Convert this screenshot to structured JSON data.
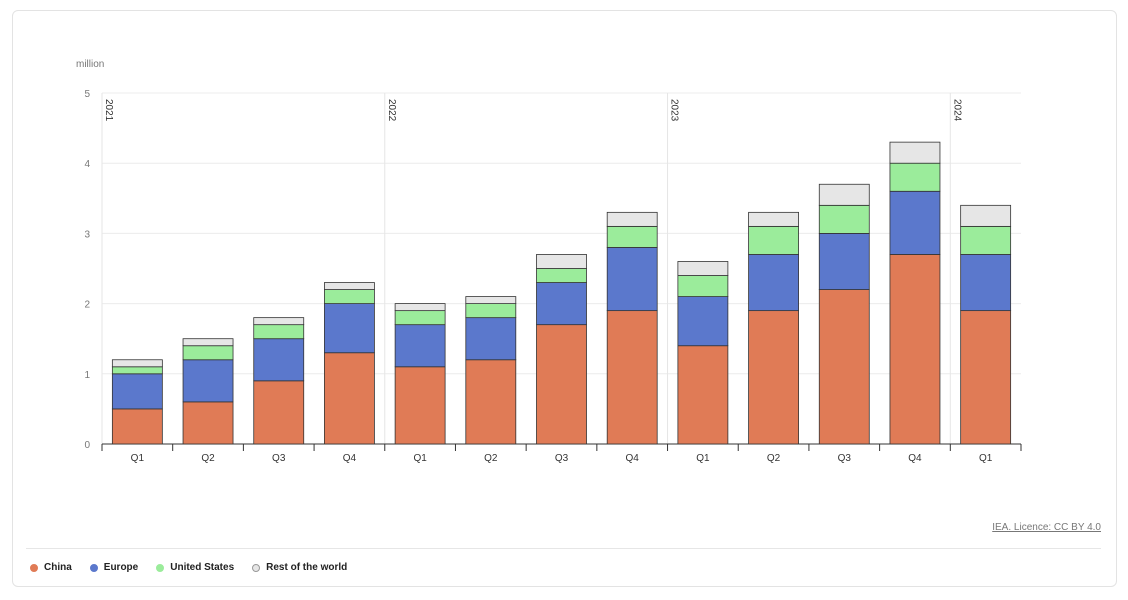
{
  "chart_data": {
    "type": "bar",
    "stacked": true,
    "ylabel": "million",
    "ylim": [
      0,
      5
    ],
    "yticks": [
      0,
      1,
      2,
      3,
      4,
      5
    ],
    "grid": true,
    "legend_placement": "bottom-left",
    "categories": [
      "Q1",
      "Q2",
      "Q3",
      "Q4",
      "Q1",
      "Q2",
      "Q3",
      "Q4",
      "Q1",
      "Q2",
      "Q3",
      "Q4",
      "Q1"
    ],
    "year_groups": [
      {
        "label": "2021",
        "start_index": 0
      },
      {
        "label": "2022",
        "start_index": 4
      },
      {
        "label": "2023",
        "start_index": 8
      },
      {
        "label": "2024",
        "start_index": 12
      }
    ],
    "series": [
      {
        "name": "China",
        "color": "#e07b56",
        "values": [
          0.5,
          0.6,
          0.9,
          1.3,
          1.1,
          1.2,
          1.7,
          1.9,
          1.4,
          1.9,
          2.2,
          2.7,
          1.9
        ]
      },
      {
        "name": "Europe",
        "color": "#5b78cc",
        "values": [
          0.5,
          0.6,
          0.6,
          0.7,
          0.6,
          0.6,
          0.6,
          0.9,
          0.7,
          0.8,
          0.8,
          0.9,
          0.8
        ]
      },
      {
        "name": "United States",
        "color": "#9bec9b",
        "values": [
          0.1,
          0.2,
          0.2,
          0.2,
          0.2,
          0.2,
          0.2,
          0.3,
          0.3,
          0.4,
          0.4,
          0.4,
          0.4
        ]
      },
      {
        "name": "Rest of the world",
        "color": "#e6e6e6",
        "values": [
          0.1,
          0.1,
          0.1,
          0.1,
          0.1,
          0.1,
          0.2,
          0.2,
          0.2,
          0.2,
          0.3,
          0.3,
          0.3
        ]
      }
    ]
  },
  "credit": "IEA. Licence: CC BY 4.0"
}
